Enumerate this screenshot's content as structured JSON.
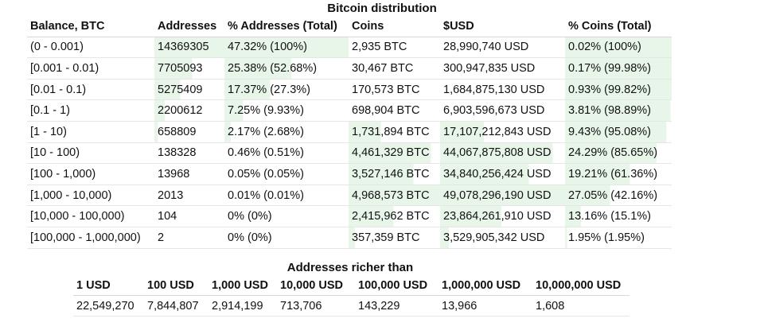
{
  "title": "Bitcoin distribution",
  "highlight_color": "#e8f6ea",
  "headers": [
    "Balance, BTC",
    "Addresses",
    "% Addresses (Total)",
    "Coins",
    "$USD",
    "% Coins (Total)"
  ],
  "rows": [
    {
      "cells": [
        "(0 - 0.001)",
        "14369305",
        "47.32% (100%)",
        "2,935 BTC",
        "28,990,740 USD",
        "0.02% (100%)"
      ],
      "bars": [
        0,
        1.0,
        1.0,
        0,
        0,
        1.0
      ]
    },
    {
      "cells": [
        "[0.001 - 0.01)",
        "7705093",
        "25.38% (52.68%)",
        "30,467 BTC",
        "300,947,835 USD",
        "0.17% (99.98%)"
      ],
      "bars": [
        0,
        0.54,
        0.54,
        0,
        0,
        1.0
      ]
    },
    {
      "cells": [
        "[0.01 - 0.1)",
        "5275409",
        "17.37% (27.3%)",
        "170,573 BTC",
        "1,684,875,130 USD",
        "0.93% (99.82%)"
      ],
      "bars": [
        0,
        0.37,
        0.37,
        0,
        0,
        1.0
      ]
    },
    {
      "cells": [
        "[0.1 - 1)",
        "2200612",
        "7.25% (9.93%)",
        "698,904 BTC",
        "6,903,596,673 USD",
        "3.81% (98.89%)"
      ],
      "bars": [
        0,
        0.15,
        0.15,
        0,
        0,
        0.99
      ]
    },
    {
      "cells": [
        "[1 - 10)",
        "658809",
        "2.17% (2.68%)",
        "1,731,894 BTC",
        "17,107,212,843 USD",
        "9.43% (95.08%)"
      ],
      "bars": [
        0,
        0.05,
        0.05,
        0.35,
        0.35,
        0.95
      ]
    },
    {
      "cells": [
        "[10 - 100)",
        "138328",
        "0.46% (0.51%)",
        "4,461,329 BTC",
        "44,067,875,808 USD",
        "24.29% (85.65%)"
      ],
      "bars": [
        0,
        0,
        0,
        0.9,
        0.9,
        0.86
      ]
    },
    {
      "cells": [
        "[100 - 1,000)",
        "13968",
        "0.05% (0.05%)",
        "3,527,146 BTC",
        "34,840,256,424 USD",
        "19.21% (61.36%)"
      ],
      "bars": [
        0,
        0,
        0,
        0.71,
        0.71,
        0.61
      ]
    },
    {
      "cells": [
        "[1,000 - 10,000)",
        "2013",
        "0.01% (0.01%)",
        "4,968,573 BTC",
        "49,078,296,190 USD",
        "27.05% (42.16%)"
      ],
      "bars": [
        0,
        0,
        0,
        1.0,
        1.0,
        0.42
      ]
    },
    {
      "cells": [
        "[10,000 - 100,000)",
        "104",
        "0% (0%)",
        "2,415,962 BTC",
        "23,864,261,910 USD",
        "13.16% (15.1%)"
      ],
      "bars": [
        0,
        0,
        0,
        0.49,
        0.49,
        0.15
      ]
    },
    {
      "cells": [
        "[100,000 - 1,000,000)",
        "2",
        "0% (0%)",
        "357,359 BTC",
        "3,529,905,342 USD",
        "1.95% (1.95%)"
      ],
      "bars": [
        0,
        0,
        0,
        0.07,
        0.07,
        0.02
      ]
    }
  ],
  "richer": {
    "title": "Addresses richer than",
    "headers": [
      "1 USD",
      "100 USD",
      "1,000 USD",
      "10,000 USD",
      "100,000 USD",
      "1,000,000 USD",
      "10,000,000 USD"
    ],
    "values": [
      "22,549,270",
      "7,844,807",
      "2,914,199",
      "713,706",
      "143,229",
      "13,966",
      "1,608"
    ]
  }
}
